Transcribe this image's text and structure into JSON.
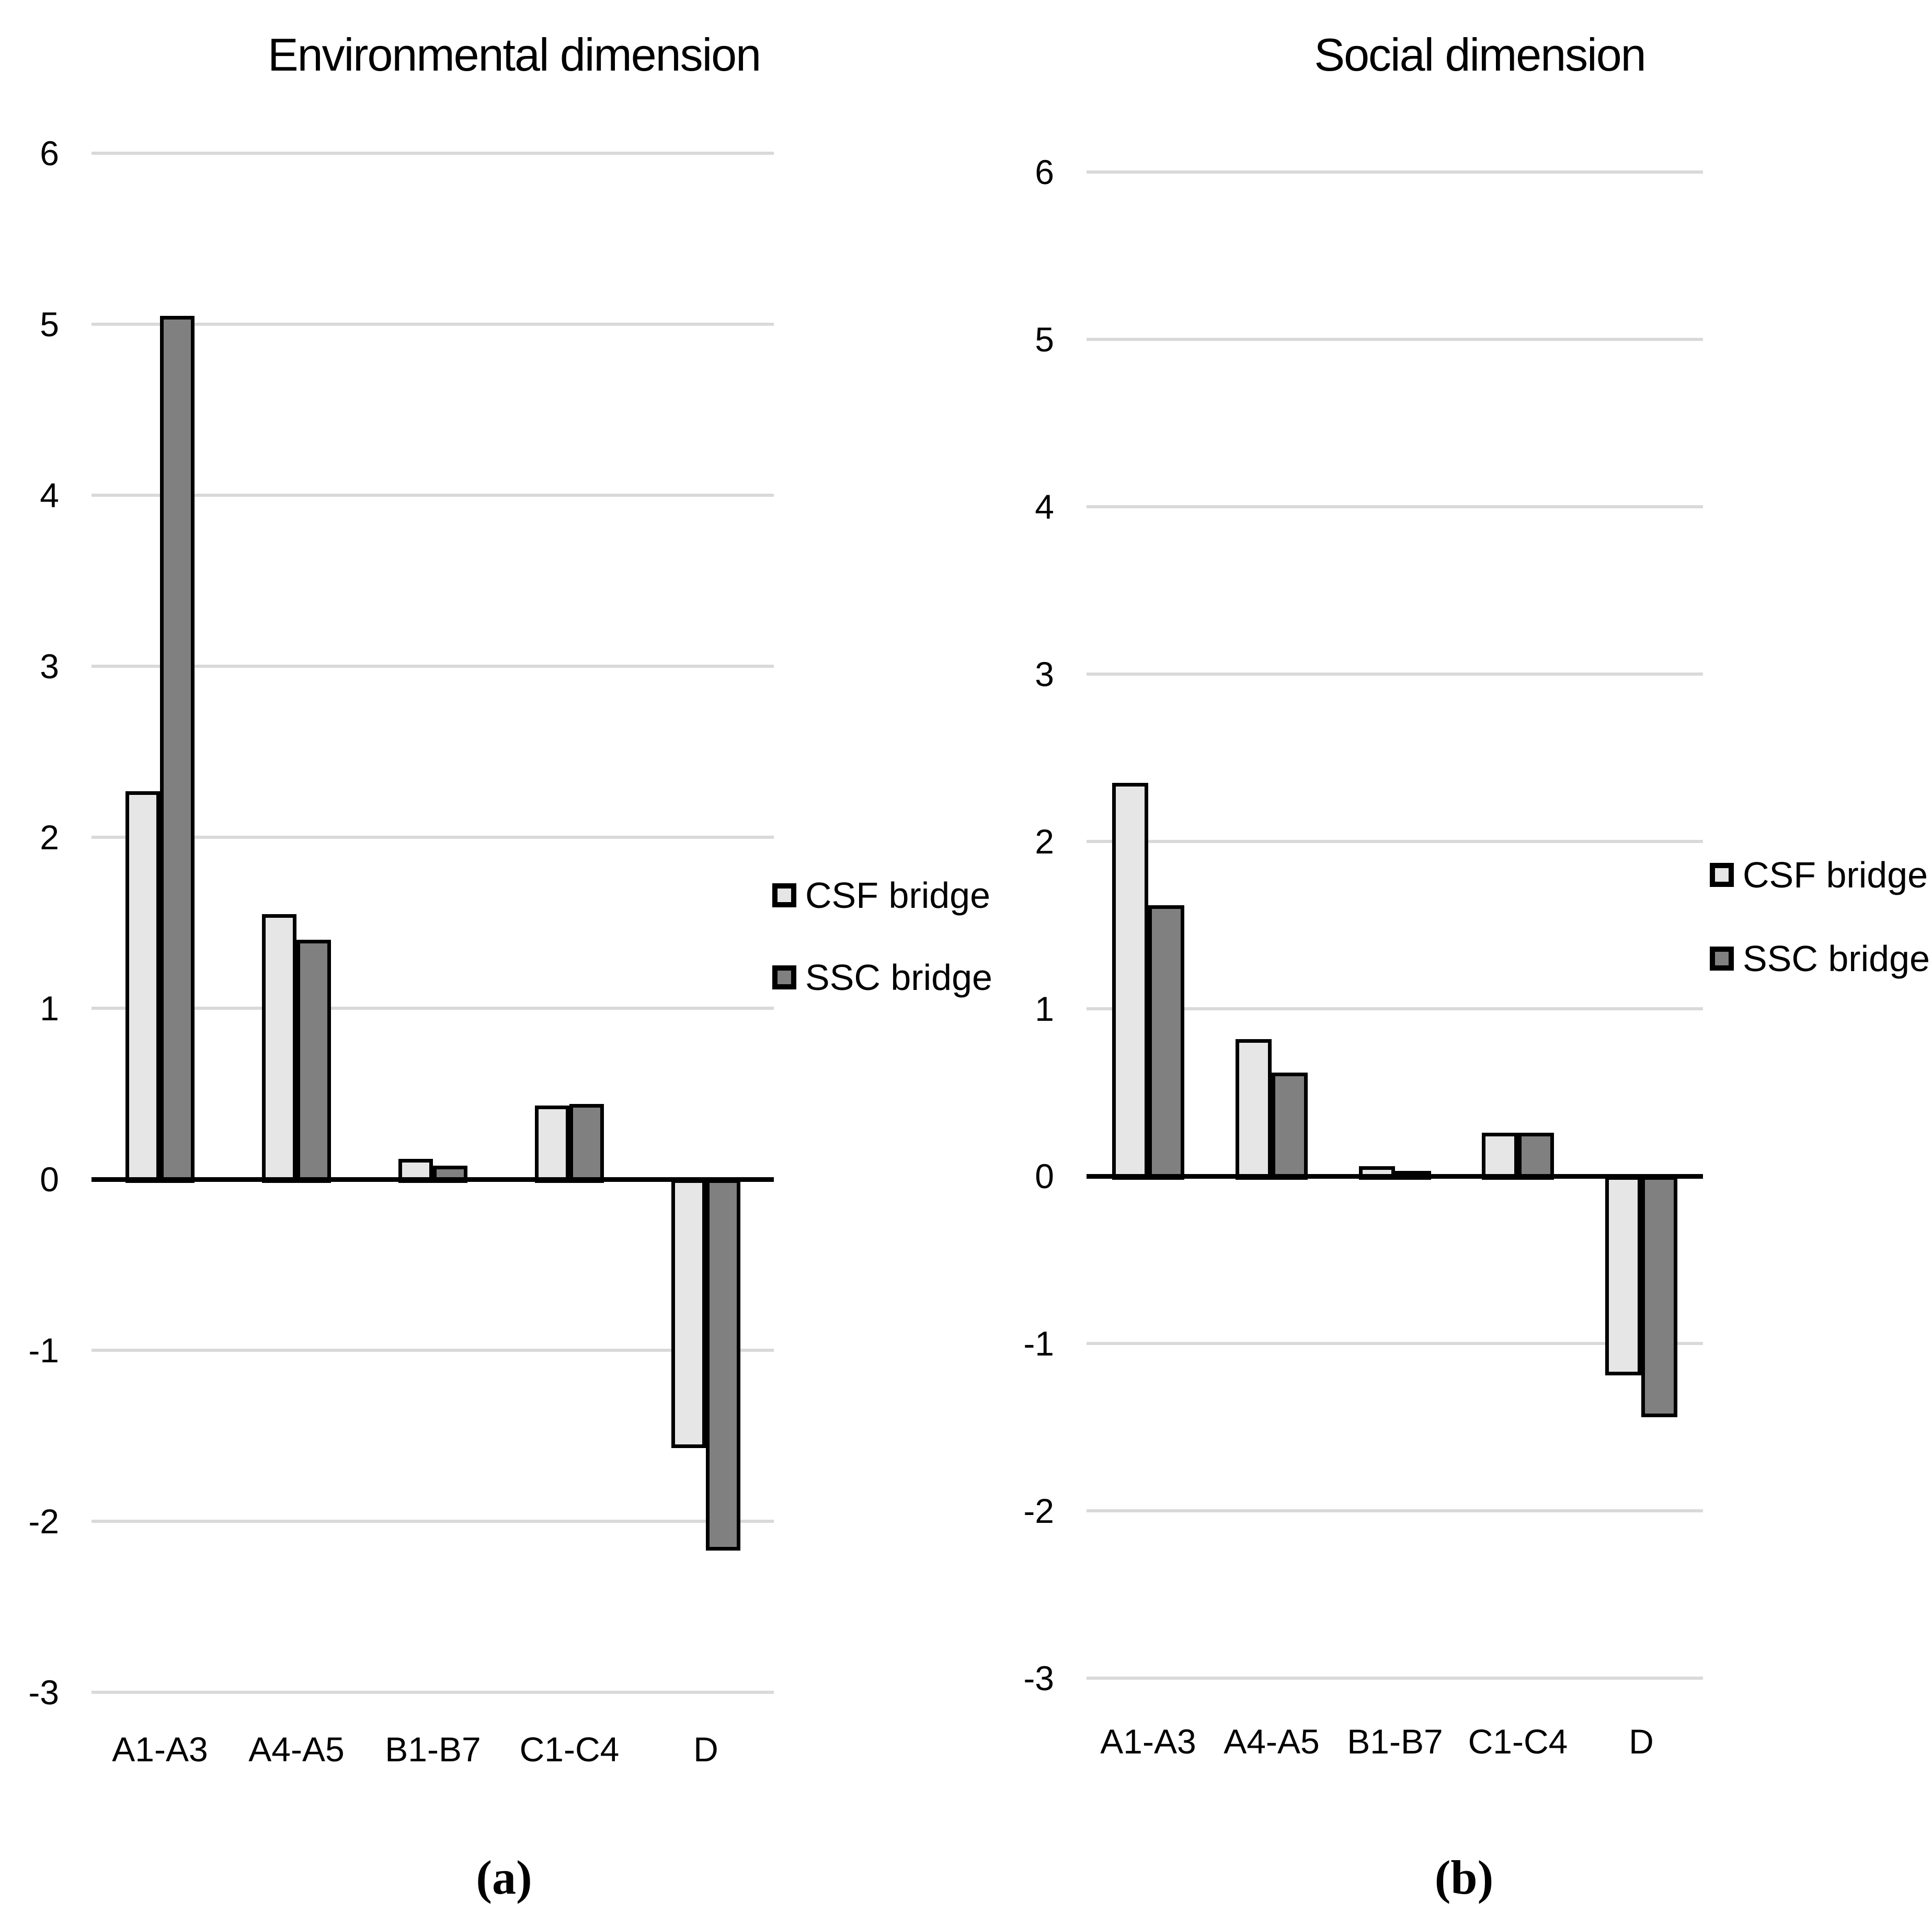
{
  "figure": {
    "background": "#ffffff",
    "text_color": "#000000"
  },
  "chart_data": [
    {
      "type": "bar",
      "title": "Environmental dimension",
      "caption": "(a)",
      "categories": [
        "A1-A3",
        "A4-A5",
        "B1-B7",
        "C1-C4",
        "D"
      ],
      "series": [
        {
          "name": "CSF bridge",
          "color": "#e6e6e6",
          "values": [
            2.27,
            1.55,
            0.12,
            0.43,
            -1.55
          ]
        },
        {
          "name": "SSC bridge",
          "color": "#808080",
          "values": [
            5.05,
            1.4,
            0.08,
            0.44,
            -2.15
          ]
        }
      ],
      "ylim": [
        -3,
        6
      ],
      "yticks": [
        6,
        5,
        4,
        3,
        2,
        1,
        0,
        -1,
        -2,
        -3
      ],
      "xlabel": "",
      "ylabel": "",
      "grid": true,
      "grid_color": "#d9d9d9",
      "axis_color": "#000000",
      "bar_border_color": "#000000",
      "legend_position": "right"
    },
    {
      "type": "bar",
      "title": "Social dimension",
      "caption": "(b)",
      "categories": [
        "A1-A3",
        "A4-A5",
        "B1-B7",
        "C1-C4",
        "D"
      ],
      "series": [
        {
          "name": "CSF bridge",
          "color": "#e6e6e6",
          "values": [
            2.35,
            0.82,
            0.06,
            0.26,
            -1.17
          ]
        },
        {
          "name": "SSC bridge",
          "color": "#808080",
          "values": [
            1.62,
            0.62,
            0.03,
            0.26,
            -1.42
          ]
        }
      ],
      "ylim": [
        -3,
        6
      ],
      "yticks": [
        6,
        5,
        4,
        3,
        2,
        1,
        0,
        -1,
        -2,
        -3
      ],
      "xlabel": "",
      "ylabel": "",
      "grid": true,
      "grid_color": "#d9d9d9",
      "axis_color": "#000000",
      "bar_border_color": "#000000",
      "legend_position": "right"
    }
  ]
}
